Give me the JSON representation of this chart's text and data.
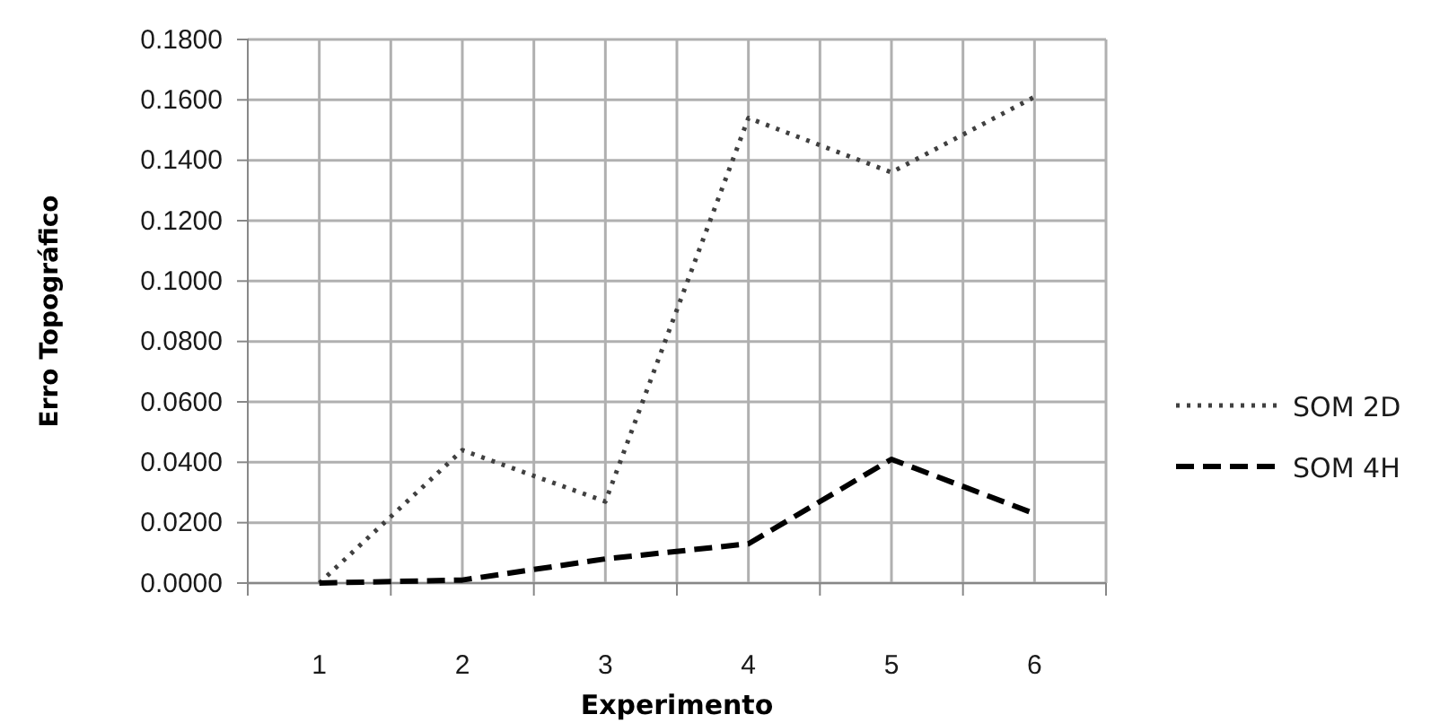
{
  "chart_data": {
    "type": "line",
    "xlabel": "Experimento",
    "ylabel": "Erro Topográfico",
    "categories": [
      "1",
      "2",
      "3",
      "4",
      "5",
      "6"
    ],
    "series": [
      {
        "name": "SOM 2D",
        "color": "#404040",
        "values": [
          0.0,
          0.044,
          0.027,
          0.154,
          0.136,
          0.161
        ],
        "line_style": "dotted"
      },
      {
        "name": "SOM 4H",
        "color": "#000000",
        "values": [
          0.0,
          0.001,
          0.008,
          0.013,
          0.041,
          0.023
        ],
        "line_style": "dashed"
      }
    ],
    "ylim": [
      0,
      0.18
    ],
    "yticks": [
      {
        "value": 0,
        "label": "0.0000"
      },
      {
        "value": 0.02,
        "label": "0.0200"
      },
      {
        "value": 0.04,
        "label": "0.0400"
      },
      {
        "value": 0.06,
        "label": "0.0600"
      },
      {
        "value": 0.08,
        "label": "0.0800"
      },
      {
        "value": 0.1,
        "label": "0.1000"
      },
      {
        "value": 0.12,
        "label": "0.1200"
      },
      {
        "value": 0.14,
        "label": "0.1400"
      },
      {
        "value": 0.16,
        "label": "0.1600"
      },
      {
        "value": 0.18,
        "label": "0.1800"
      }
    ],
    "grid": true,
    "legend": "right",
    "marker": "none"
  }
}
